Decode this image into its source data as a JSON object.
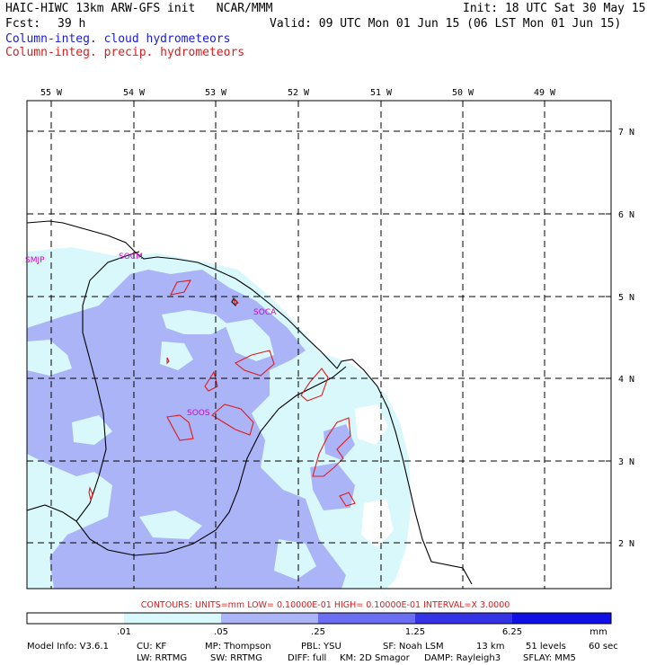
{
  "header": {
    "model_line": "HAIC-HIWC 13km ARW-GFS init   NCAR/MMM",
    "init": "Init: 18 UTC Sat 30 May 15",
    "fcst_label": "Fcst:",
    "fcst_value": "39 h",
    "valid": "Valid: 09 UTC Mon 01 Jun 15 (06 LST Mon 01 Jun 15)",
    "field1": "Column-integ. cloud hydrometeors",
    "field2": "Column-integ. precip. hydrometeors"
  },
  "map": {
    "lon_labels": [
      "55 W",
      "54 W",
      "53 W",
      "52 W",
      "51 W",
      "50 W",
      "49 W"
    ],
    "lat_labels": [
      "7 N",
      "6 N",
      "5 N",
      "4 N",
      "3 N",
      "2 N"
    ],
    "stations": [
      "SMJP",
      "SOCM",
      "SOCA",
      "SOOS"
    ]
  },
  "contour_info": "CONTOURS:  UNITS=mm  LOW= 0.10000E-01  HIGH= 0.10000E-01  INTERVAL=X  3.0000",
  "colorbar": {
    "tick_labels": [
      ".01",
      ".05",
      ".25",
      "1.25",
      "6.25"
    ],
    "units": "mm",
    "colors": [
      "#ffffff",
      "#d8f8fb",
      "#aab4f7",
      "#6a6ef2",
      "#3434e6",
      "#1010e6"
    ]
  },
  "footer": {
    "line1": {
      "model": "Model Info: V3.6.1",
      "cu": "CU: KF",
      "mp": "MP: Thompson",
      "pbl": "PBL: YSU",
      "sf": "SF: Noah LSM",
      "res": "13 km",
      "levels": "51 levels",
      "dt": "60 sec"
    },
    "line2": {
      "lw": "LW: RRTMG",
      "sw": "SW: RRTMG",
      "diff": "DIFF: full",
      "km": "KM: 2D Smagor",
      "damp": "DAMP: Rayleigh3",
      "sflay": "SFLAY: MM5"
    }
  }
}
